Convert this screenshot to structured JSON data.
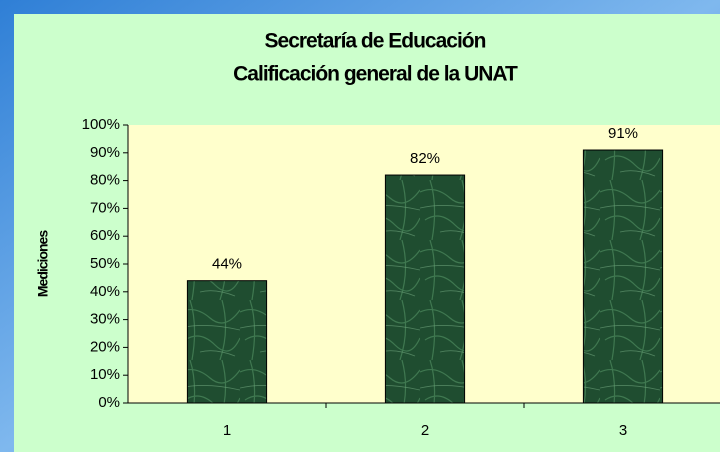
{
  "chart_data": {
    "type": "bar",
    "title": "Secretaría de Educación",
    "subtitle": "Calificación general de la UNAT",
    "y_label": "Mediciones",
    "categories": [
      "1",
      "2",
      "3"
    ],
    "values": [
      44,
      82,
      91
    ],
    "value_labels": [
      "44%",
      "82%",
      "91%"
    ],
    "color": "#1f4d30",
    "ylim": [
      0,
      100
    ],
    "yticks": [
      {
        "value": 0,
        "label": "0%"
      },
      {
        "value": 10,
        "label": "10%"
      },
      {
        "value": 20,
        "label": "20%"
      },
      {
        "value": 30,
        "label": "30%"
      },
      {
        "value": 40,
        "label": "40%"
      },
      {
        "value": 50,
        "label": "50%"
      },
      {
        "value": 60,
        "label": "60%"
      },
      {
        "value": 70,
        "label": "70%"
      },
      {
        "value": 80,
        "label": "80%"
      },
      {
        "value": 90,
        "label": "90%"
      },
      {
        "value": 100,
        "label": "100%"
      }
    ],
    "grid": false
  }
}
